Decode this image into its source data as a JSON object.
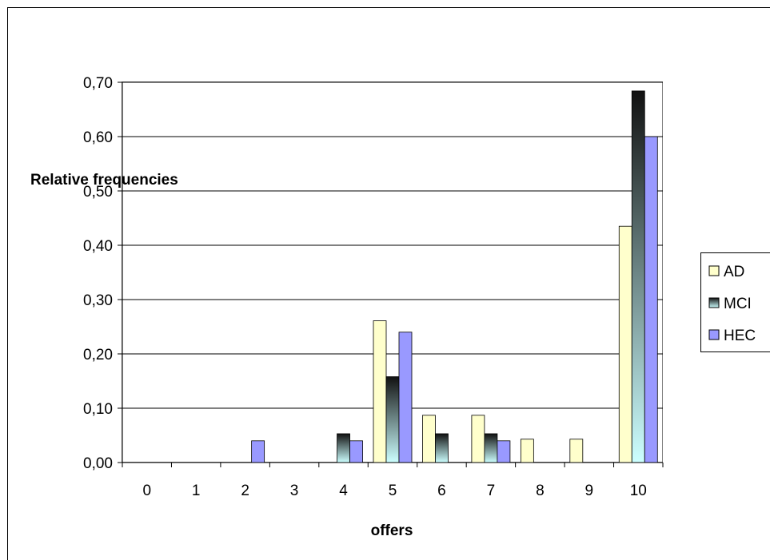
{
  "chart_data": {
    "type": "bar",
    "title": "",
    "xlabel": "offers",
    "ylabel": "Relative frequencies",
    "categories": [
      "0",
      "1",
      "2",
      "3",
      "4",
      "5",
      "6",
      "7",
      "8",
      "9",
      "10"
    ],
    "y_ticks": [
      "0,00",
      "0,10",
      "0,20",
      "0,30",
      "0,40",
      "0,50",
      "0,60",
      "0,70"
    ],
    "ylim": [
      0,
      0.7
    ],
    "grid": "horizontal",
    "legend_position": "right",
    "series": [
      {
        "name": "AD",
        "color": "#ffffcc",
        "values": [
          0,
          0,
          0,
          0,
          0,
          0.261,
          0.087,
          0.087,
          0.043,
          0.043,
          0.435
        ]
      },
      {
        "name": "MCI",
        "color": "#1a1a1a",
        "color_bottom": "#ccffff",
        "values": [
          0,
          0,
          0,
          0,
          0.053,
          0.158,
          0.053,
          0.053,
          0,
          0,
          0.684
        ]
      },
      {
        "name": "HEC",
        "color": "#9999ff",
        "values": [
          0,
          0,
          0.04,
          0,
          0.04,
          0.24,
          0,
          0.04,
          0,
          0,
          0.6
        ]
      }
    ]
  }
}
